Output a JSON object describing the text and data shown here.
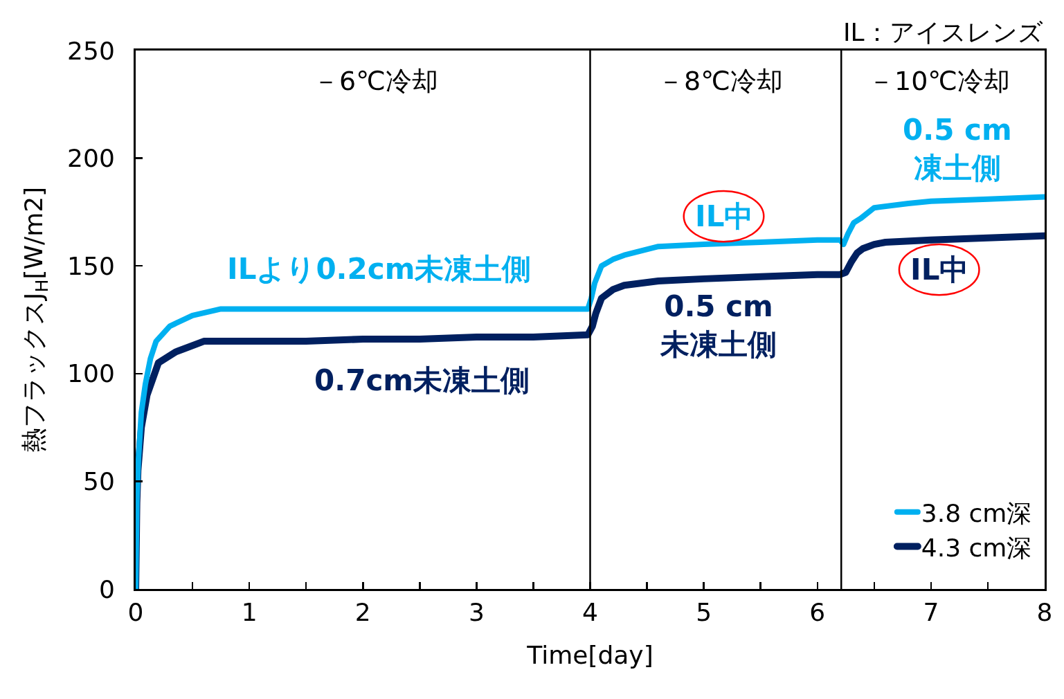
{
  "chart_data": {
    "type": "line",
    "xlabel": "Time[day]",
    "ylabel": "熱フラックスJ$_{H}$[W/m2]",
    "xlim": [
      0,
      8
    ],
    "ylim": [
      0,
      250
    ],
    "xticks": [
      0,
      {
        "value": 0.5,
        "label": null
      },
      1,
      {
        "value": 1.5,
        "label": null
      },
      2,
      {
        "value": 2.5,
        "label": null
      },
      3,
      {
        "value": 3.5,
        "label": null
      },
      4,
      {
        "value": 4.5,
        "label": null
      },
      5,
      {
        "value": 5.5,
        "label": null
      },
      6,
      {
        "value": 6.5,
        "label": null
      },
      7,
      {
        "value": 7.5,
        "label": null
      },
      8
    ],
    "yticks": [
      0,
      50,
      100,
      150,
      200,
      250
    ],
    "grid": false,
    "legend": "bottom right",
    "line_style": "solid",
    "series": [
      {
        "name": "3.8 cm深",
        "color": "#00b0f0",
        "x": [
          0,
          0.01,
          0.024,
          0.05,
          0.085,
          0.13,
          0.18,
          0.3,
          0.5,
          0.75,
          1,
          1.5,
          2,
          2.5,
          3,
          3.5,
          3.98,
          4.01,
          4.04,
          4.1,
          4.2,
          4.3,
          4.6,
          5,
          5.5,
          6,
          6.2,
          6.23,
          6.27,
          6.32,
          6.38,
          6.5,
          6.8,
          7,
          7.5,
          8
        ],
        "values": [
          0,
          40,
          60,
          82,
          95,
          107,
          115,
          122,
          127,
          130,
          130,
          130,
          130,
          130,
          130,
          130,
          130,
          135,
          142,
          150,
          153,
          155,
          159,
          160,
          161,
          162,
          162,
          160,
          165,
          170,
          172,
          177,
          179,
          180,
          181,
          182
        ]
      },
      {
        "name": "4.3 cm深",
        "color": "#002060",
        "x": [
          0,
          0.01,
          0.02,
          0.05,
          0.1,
          0.2,
          0.35,
          0.6,
          1,
          1.5,
          2,
          2.5,
          3,
          3.5,
          3.98,
          4.02,
          4.05,
          4.1,
          4.2,
          4.3,
          4.6,
          5,
          5.5,
          6,
          6.2,
          6.25,
          6.3,
          6.35,
          6.4,
          6.5,
          6.6,
          7,
          7.5,
          8
        ],
        "values": [
          0,
          40,
          55,
          75,
          90,
          105,
          110,
          115,
          115,
          115,
          116,
          116,
          117,
          117,
          118,
          122,
          128,
          135,
          139,
          141,
          143,
          144,
          145,
          146,
          146,
          147,
          152,
          156,
          158,
          160,
          161,
          162,
          163,
          164
        ]
      }
    ],
    "ref_lines": [
      {
        "axis": "x",
        "value": 4,
        "color": "#000000"
      },
      {
        "axis": "x",
        "value": 6.21,
        "color": "#000000"
      }
    ],
    "annotations": [
      "IL：アイスレンズ",
      "－6℃冷却",
      "－8℃冷却",
      "－10℃冷却",
      "ILより0.2cm未凍土側",
      "0.7cm未凍土側",
      "IL中",
      "0.5 cm\n未凍土側",
      "0.5 cm\n凍土側",
      "IL中"
    ]
  }
}
